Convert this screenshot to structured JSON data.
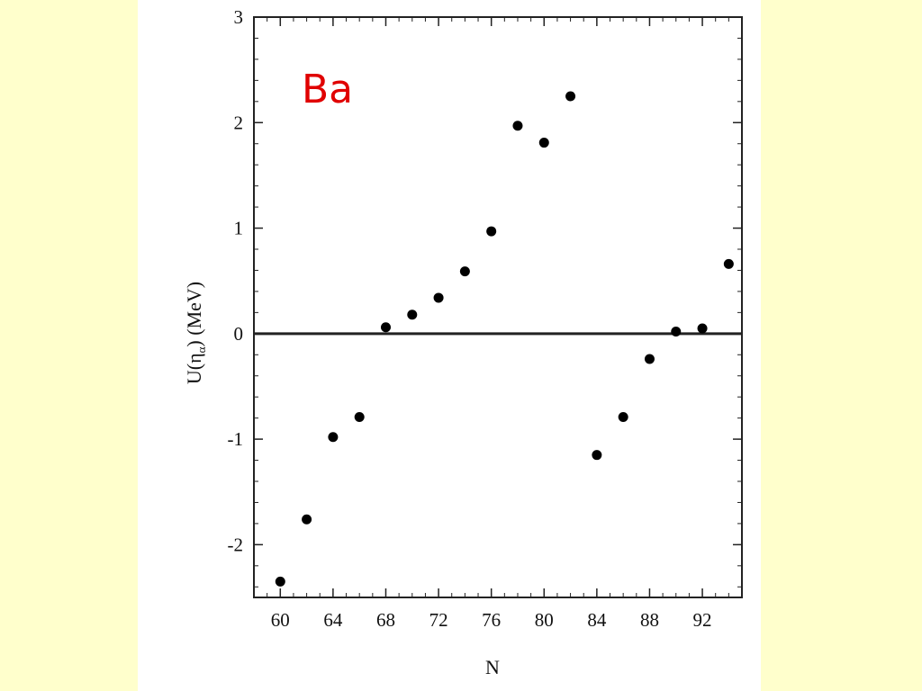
{
  "colors": {
    "slide_background": "#ffffcc",
    "plot_background": "#ffffff",
    "element_label": "#e00000",
    "data": "#000000"
  },
  "chart_data": {
    "type": "scatter",
    "title": "",
    "annotation": "Ba",
    "xlabel": "N",
    "ylabel": "U(ηα) (MeV)",
    "ylabel_main": "U(η",
    "ylabel_sub": "α",
    "ylabel_tail": ") (MeV)",
    "xlim": [
      58,
      95
    ],
    "ylim": [
      -2.5,
      3
    ],
    "xticks": [
      60,
      64,
      68,
      72,
      76,
      80,
      84,
      88,
      92
    ],
    "yticks": [
      -2,
      -1,
      0,
      1,
      2,
      3
    ],
    "ytick_labels": [
      "-2",
      "-1",
      "0",
      "1",
      "2",
      "3"
    ],
    "reference_line_y": 0,
    "grid": false,
    "legend": "none",
    "series": [
      {
        "x": [
          60,
          62,
          64,
          66,
          68,
          70,
          72,
          74,
          76,
          78,
          80,
          82,
          84,
          86,
          88,
          90,
          92,
          94
        ],
        "y": [
          -2.35,
          -1.76,
          -0.98,
          -0.79,
          0.06,
          0.18,
          0.34,
          0.59,
          0.97,
          1.97,
          1.81,
          2.25,
          -1.15,
          -0.79,
          -0.24,
          0.02,
          0.05,
          0.66
        ]
      }
    ]
  }
}
